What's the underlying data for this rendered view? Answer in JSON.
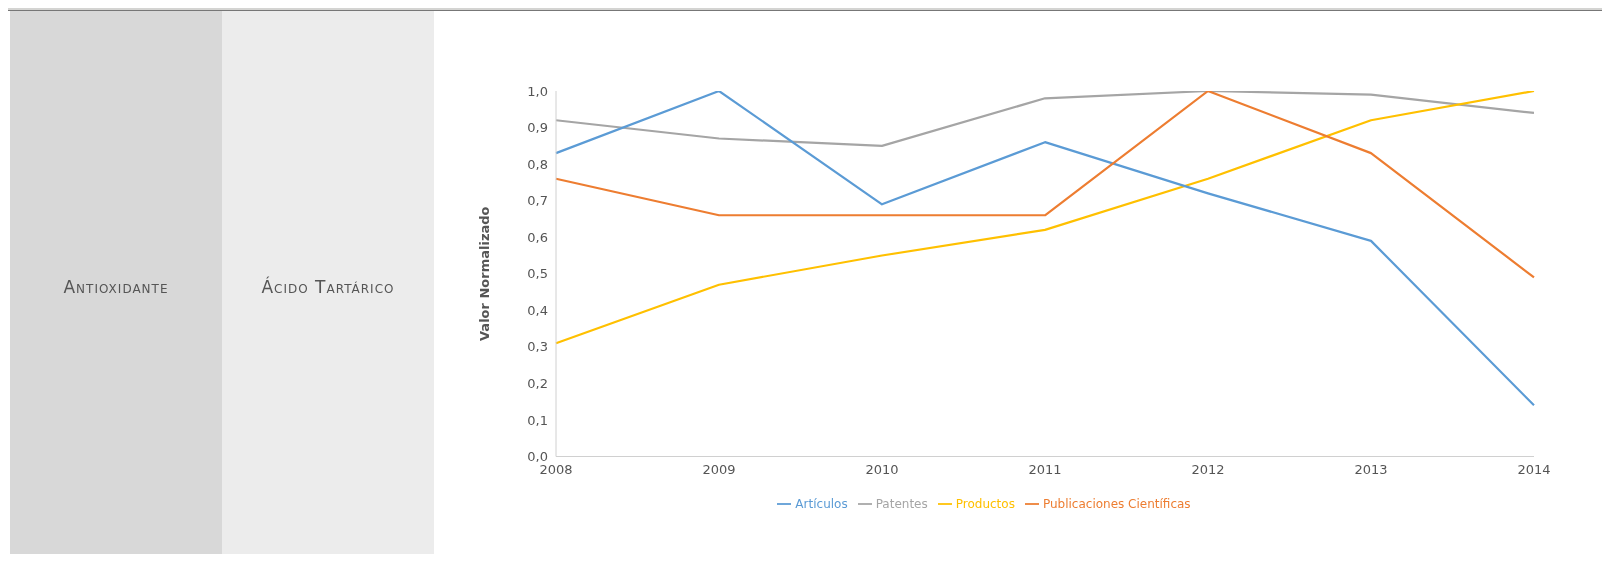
{
  "chart_data": {
    "type": "line",
    "ylabel": "Valor Normalizado",
    "annotations": [
      "Antioxidante",
      "Ácido Tartárico"
    ],
    "categories": [
      "2008",
      "2009",
      "2010",
      "2011",
      "2012",
      "2013",
      "2014"
    ],
    "series": [
      {
        "name": "Patentes",
        "color": "#a5a5a5",
        "values": [
          0.92,
          0.87,
          0.85,
          0.98,
          1.0,
          0.99,
          0.94
        ]
      },
      {
        "name": "Productos",
        "color": "#ffc000",
        "values": [
          0.31,
          0.47,
          0.55,
          0.62,
          0.76,
          0.92,
          1.0
        ]
      },
      {
        "name": "Artículos",
        "color": "#5b9bd5",
        "values": [
          0.83,
          1.0,
          0.69,
          0.86,
          0.72,
          0.59,
          0.14
        ]
      },
      {
        "name": "Publicaciones Científicas",
        "color": "#ed7d31",
        "values": [
          0.76,
          0.66,
          0.66,
          0.66,
          1.0,
          0.83,
          0.49
        ]
      }
    ],
    "ylim": [
      0,
      1
    ],
    "yticks": [
      {
        "value": 0,
        "label": "0,0"
      },
      {
        "value": 0.1,
        "label": "0,1"
      },
      {
        "value": 0.2,
        "label": "0,2"
      },
      {
        "value": 0.3,
        "label": "0,3"
      },
      {
        "value": 0.4,
        "label": "0,4"
      },
      {
        "value": 0.5,
        "label": "0,5"
      },
      {
        "value": 0.6,
        "label": "0,6"
      },
      {
        "value": 0.7,
        "label": "0,7"
      },
      {
        "value": 0.8,
        "label": "0,8"
      },
      {
        "value": 0.9,
        "label": "0,9"
      },
      {
        "value": 1,
        "label": "1,0"
      }
    ],
    "grid": false,
    "legend": "bottom",
    "marker": "none",
    "line_style": "solid"
  }
}
